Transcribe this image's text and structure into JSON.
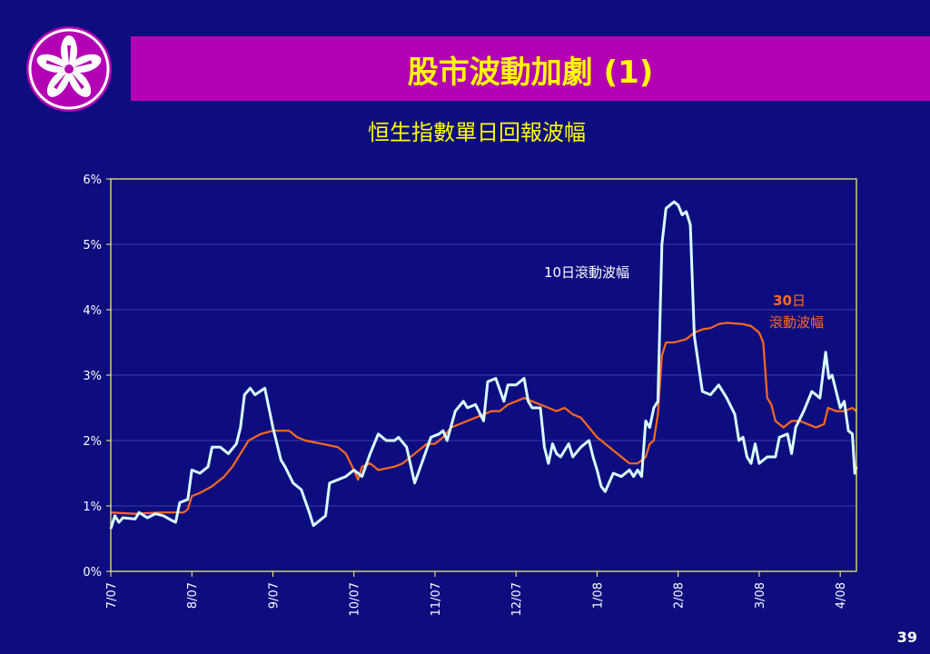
{
  "slide": {
    "title": "股市波動加劇 (1)",
    "subtitle": "恒生指數單日回報波幅",
    "page_number": "39"
  },
  "colors": {
    "background": "#0d0d80",
    "title_bar": "#b400b4",
    "title_text": "#ffff00",
    "series_10d": "#d8ffff",
    "series_30d": "#ff6a1a",
    "axis": "#ffff66"
  },
  "logo": {
    "icon": "bauhinia-flower-icon"
  },
  "chart_data": {
    "type": "line",
    "ylim": [
      0,
      6
    ],
    "y_ticks": [
      "0%",
      "1%",
      "2%",
      "3%",
      "4%",
      "5%",
      "6%"
    ],
    "x_ticks": [
      "7/07",
      "8/07",
      "9/07",
      "10/07",
      "11/07",
      "12/07",
      "1/08",
      "2/08",
      "3/08",
      "4/08"
    ],
    "x_range": [
      0,
      9.2
    ],
    "grid": true,
    "series": [
      {
        "label": "10日滾動波幅",
        "points": [
          [
            0.0,
            0.65
          ],
          [
            0.05,
            0.85
          ],
          [
            0.1,
            0.75
          ],
          [
            0.15,
            0.82
          ],
          [
            0.3,
            0.8
          ],
          [
            0.35,
            0.9
          ],
          [
            0.45,
            0.82
          ],
          [
            0.55,
            0.88
          ],
          [
            0.65,
            0.85
          ],
          [
            0.75,
            0.78
          ],
          [
            0.8,
            0.75
          ],
          [
            0.85,
            1.05
          ],
          [
            0.95,
            1.1
          ],
          [
            1.0,
            1.55
          ],
          [
            1.1,
            1.5
          ],
          [
            1.2,
            1.6
          ],
          [
            1.25,
            1.9
          ],
          [
            1.35,
            1.9
          ],
          [
            1.45,
            1.8
          ],
          [
            1.55,
            1.95
          ],
          [
            1.6,
            2.2
          ],
          [
            1.65,
            2.7
          ],
          [
            1.72,
            2.8
          ],
          [
            1.78,
            2.7
          ],
          [
            1.9,
            2.8
          ],
          [
            2.0,
            2.2
          ],
          [
            2.1,
            1.7
          ],
          [
            2.15,
            1.6
          ],
          [
            2.25,
            1.35
          ],
          [
            2.35,
            1.25
          ],
          [
            2.45,
            0.9
          ],
          [
            2.5,
            0.7
          ],
          [
            2.6,
            0.8
          ],
          [
            2.65,
            0.85
          ],
          [
            2.7,
            1.35
          ],
          [
            2.8,
            1.4
          ],
          [
            2.9,
            1.45
          ],
          [
            3.0,
            1.55
          ],
          [
            3.1,
            1.45
          ],
          [
            3.2,
            1.8
          ],
          [
            3.3,
            2.1
          ],
          [
            3.4,
            2.0
          ],
          [
            3.5,
            2.0
          ],
          [
            3.55,
            2.05
          ],
          [
            3.65,
            1.9
          ],
          [
            3.75,
            1.35
          ],
          [
            3.85,
            1.7
          ],
          [
            3.95,
            2.05
          ],
          [
            4.05,
            2.1
          ],
          [
            4.1,
            2.15
          ],
          [
            4.15,
            2.0
          ],
          [
            4.25,
            2.45
          ],
          [
            4.35,
            2.6
          ],
          [
            4.4,
            2.5
          ],
          [
            4.5,
            2.55
          ],
          [
            4.6,
            2.3
          ],
          [
            4.65,
            2.9
          ],
          [
            4.75,
            2.95
          ],
          [
            4.85,
            2.6
          ],
          [
            4.9,
            2.85
          ],
          [
            5.0,
            2.85
          ],
          [
            5.05,
            2.9
          ],
          [
            5.1,
            2.95
          ],
          [
            5.15,
            2.6
          ],
          [
            5.2,
            2.5
          ],
          [
            5.3,
            2.5
          ],
          [
            5.35,
            1.9
          ],
          [
            5.4,
            1.65
          ],
          [
            5.45,
            1.95
          ],
          [
            5.5,
            1.8
          ],
          [
            5.55,
            1.75
          ],
          [
            5.65,
            1.95
          ],
          [
            5.7,
            1.75
          ],
          [
            5.8,
            1.9
          ],
          [
            5.9,
            2.0
          ],
          [
            5.95,
            1.75
          ],
          [
            6.0,
            1.55
          ],
          [
            6.05,
            1.3
          ],
          [
            6.1,
            1.22
          ],
          [
            6.2,
            1.5
          ],
          [
            6.3,
            1.45
          ],
          [
            6.4,
            1.55
          ],
          [
            6.45,
            1.45
          ],
          [
            6.5,
            1.55
          ],
          [
            6.55,
            1.45
          ],
          [
            6.6,
            2.3
          ],
          [
            6.65,
            2.2
          ],
          [
            6.7,
            2.5
          ],
          [
            6.75,
            2.6
          ],
          [
            6.8,
            5.0
          ],
          [
            6.85,
            5.55
          ],
          [
            6.95,
            5.65
          ],
          [
            7.0,
            5.6
          ],
          [
            7.05,
            5.45
          ],
          [
            7.1,
            5.5
          ],
          [
            7.15,
            5.3
          ],
          [
            7.2,
            3.6
          ],
          [
            7.3,
            2.75
          ],
          [
            7.4,
            2.7
          ],
          [
            7.5,
            2.85
          ],
          [
            7.6,
            2.65
          ],
          [
            7.7,
            2.4
          ],
          [
            7.75,
            2.0
          ],
          [
            7.8,
            2.05
          ],
          [
            7.85,
            1.75
          ],
          [
            7.9,
            1.65
          ],
          [
            7.95,
            1.95
          ],
          [
            8.0,
            1.65
          ],
          [
            8.1,
            1.75
          ],
          [
            8.2,
            1.75
          ],
          [
            8.25,
            2.05
          ],
          [
            8.35,
            2.1
          ],
          [
            8.4,
            1.8
          ],
          [
            8.45,
            2.2
          ],
          [
            8.55,
            2.45
          ],
          [
            8.65,
            2.75
          ],
          [
            8.75,
            2.65
          ],
          [
            8.82,
            3.35
          ],
          [
            8.86,
            2.95
          ],
          [
            8.9,
            3.0
          ],
          [
            8.95,
            2.75
          ],
          [
            9.0,
            2.5
          ],
          [
            9.05,
            2.6
          ],
          [
            9.1,
            2.15
          ],
          [
            9.15,
            2.1
          ],
          [
            9.18,
            1.5
          ],
          [
            9.2,
            1.6
          ]
        ]
      },
      {
        "label_line1": "30",
        "label_line2": "日",
        "label_line3": "滾動波幅",
        "points": [
          [
            0.0,
            0.9
          ],
          [
            0.3,
            0.88
          ],
          [
            0.6,
            0.9
          ],
          [
            0.9,
            0.9
          ],
          [
            0.95,
            0.95
          ],
          [
            1.0,
            1.15
          ],
          [
            1.1,
            1.2
          ],
          [
            1.25,
            1.3
          ],
          [
            1.4,
            1.45
          ],
          [
            1.5,
            1.6
          ],
          [
            1.6,
            1.8
          ],
          [
            1.7,
            2.0
          ],
          [
            1.85,
            2.1
          ],
          [
            2.0,
            2.15
          ],
          [
            2.2,
            2.15
          ],
          [
            2.3,
            2.05
          ],
          [
            2.4,
            2.0
          ],
          [
            2.6,
            1.95
          ],
          [
            2.8,
            1.9
          ],
          [
            2.9,
            1.8
          ],
          [
            3.0,
            1.55
          ],
          [
            3.05,
            1.4
          ],
          [
            3.1,
            1.6
          ],
          [
            3.2,
            1.65
          ],
          [
            3.3,
            1.55
          ],
          [
            3.5,
            1.6
          ],
          [
            3.6,
            1.65
          ],
          [
            3.7,
            1.75
          ],
          [
            3.8,
            1.85
          ],
          [
            3.9,
            1.95
          ],
          [
            4.0,
            1.95
          ],
          [
            4.1,
            2.05
          ],
          [
            4.2,
            2.2
          ],
          [
            4.3,
            2.25
          ],
          [
            4.4,
            2.3
          ],
          [
            4.5,
            2.35
          ],
          [
            4.6,
            2.4
          ],
          [
            4.7,
            2.45
          ],
          [
            4.8,
            2.45
          ],
          [
            4.9,
            2.55
          ],
          [
            5.0,
            2.6
          ],
          [
            5.1,
            2.65
          ],
          [
            5.2,
            2.6
          ],
          [
            5.3,
            2.55
          ],
          [
            5.4,
            2.5
          ],
          [
            5.5,
            2.45
          ],
          [
            5.6,
            2.5
          ],
          [
            5.7,
            2.4
          ],
          [
            5.8,
            2.35
          ],
          [
            5.9,
            2.2
          ],
          [
            6.0,
            2.05
          ],
          [
            6.1,
            1.95
          ],
          [
            6.2,
            1.85
          ],
          [
            6.3,
            1.75
          ],
          [
            6.4,
            1.65
          ],
          [
            6.5,
            1.65
          ],
          [
            6.6,
            1.75
          ],
          [
            6.65,
            1.95
          ],
          [
            6.7,
            2.0
          ],
          [
            6.75,
            2.4
          ],
          [
            6.8,
            3.3
          ],
          [
            6.85,
            3.5
          ],
          [
            6.95,
            3.5
          ],
          [
            7.1,
            3.55
          ],
          [
            7.2,
            3.65
          ],
          [
            7.3,
            3.7
          ],
          [
            7.4,
            3.72
          ],
          [
            7.5,
            3.78
          ],
          [
            7.6,
            3.8
          ],
          [
            7.8,
            3.78
          ],
          [
            7.9,
            3.75
          ],
          [
            8.0,
            3.65
          ],
          [
            8.05,
            3.5
          ],
          [
            8.1,
            2.65
          ],
          [
            8.15,
            2.55
          ],
          [
            8.2,
            2.3
          ],
          [
            8.3,
            2.2
          ],
          [
            8.4,
            2.3
          ],
          [
            8.5,
            2.3
          ],
          [
            8.6,
            2.25
          ],
          [
            8.7,
            2.2
          ],
          [
            8.8,
            2.25
          ],
          [
            8.85,
            2.5
          ],
          [
            8.95,
            2.45
          ],
          [
            9.05,
            2.45
          ],
          [
            9.15,
            2.5
          ],
          [
            9.2,
            2.45
          ]
        ]
      }
    ]
  }
}
